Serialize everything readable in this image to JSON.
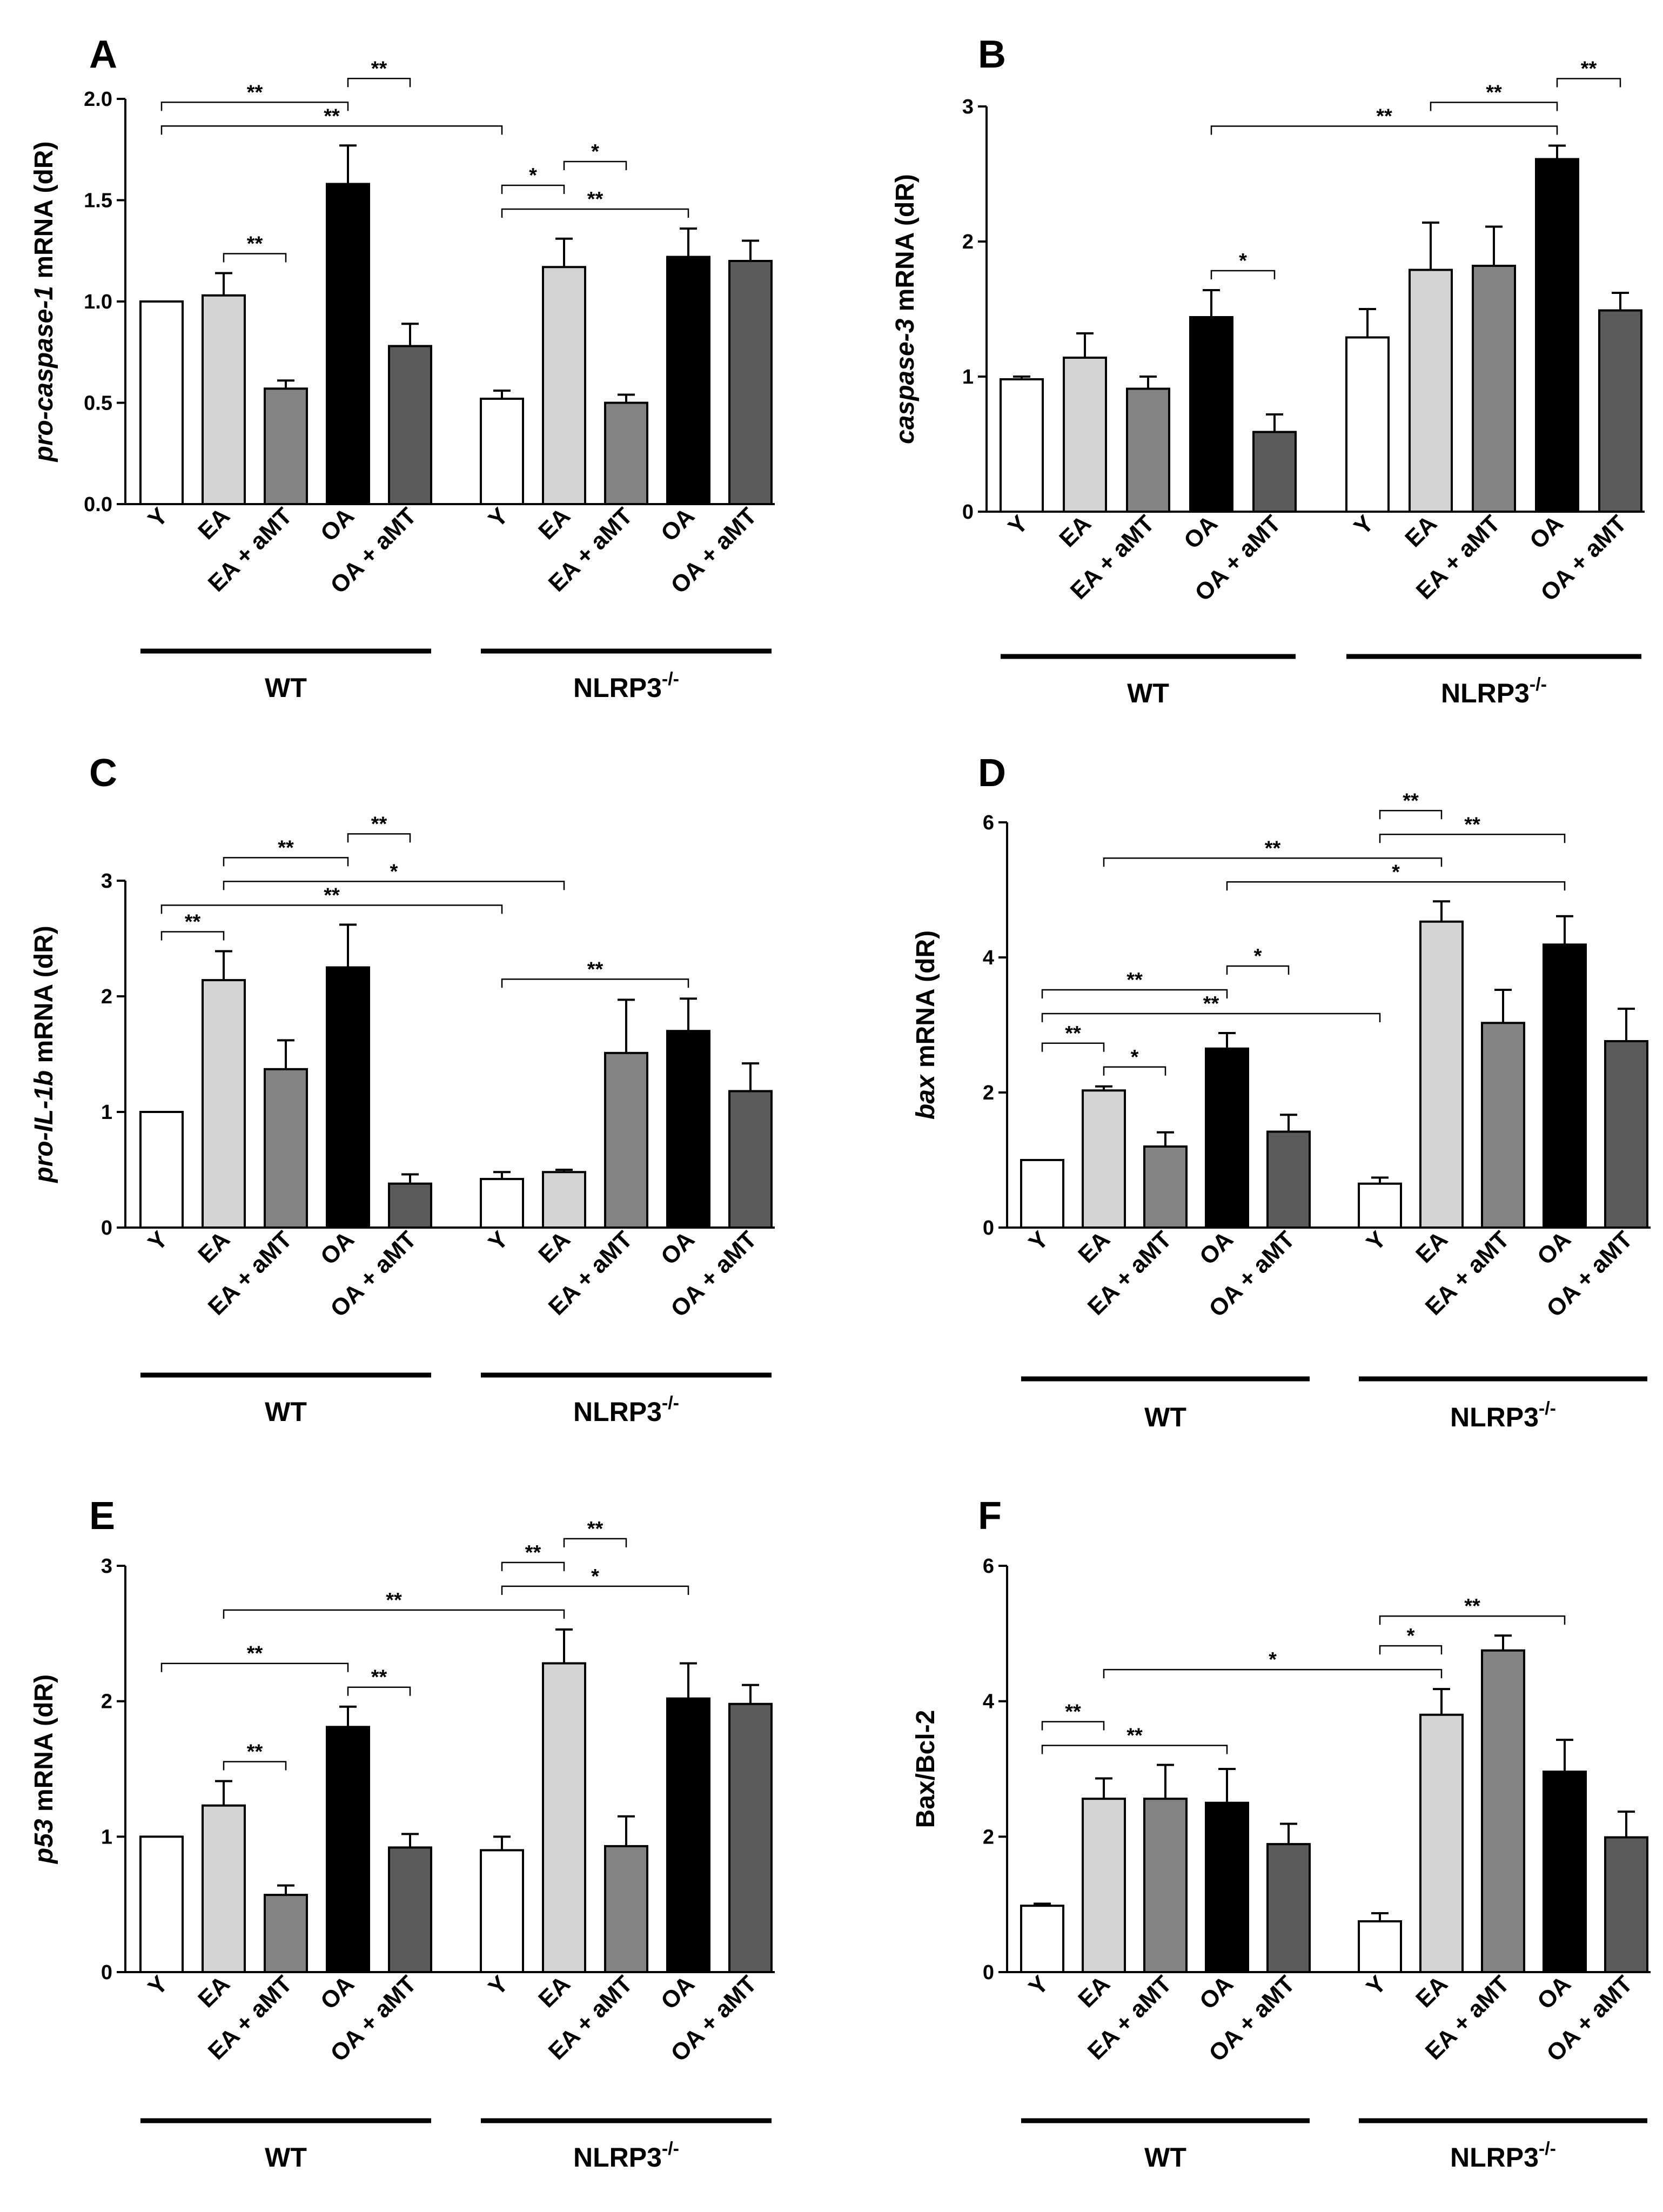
{
  "colors": {
    "Y": "#ffffff",
    "EA": "#d4d4d4",
    "EA + aMT": "#838383",
    "OA": "#000000",
    "OA + aMT": "#5a5a5a"
  },
  "groups": [
    "WT",
    "NLRP3",
    "-/-"
  ],
  "chart_data": [
    {
      "type": "bar",
      "panel": "A",
      "ylabel": {
        "gene": "pro-caspase-1",
        "rest": " mRNA (dR)"
      },
      "ylim": [
        0,
        2.0
      ],
      "yticks": [
        "0.0",
        "0.5",
        "1.0",
        "1.5",
        "2.0"
      ],
      "categories": [
        "Y",
        "EA",
        "EA + aMT",
        "OA",
        "OA + aMT",
        "Y",
        "EA",
        "EA + aMT",
        "OA",
        "OA + aMT"
      ],
      "values": [
        1.0,
        1.03,
        0.57,
        1.58,
        0.78,
        0.52,
        1.17,
        0.5,
        1.22,
        1.2
      ],
      "errors": [
        0,
        0.11,
        0.04,
        0.19,
        0.11,
        0.04,
        0.14,
        0.04,
        0.14,
        0.1
      ],
      "significance": [
        {
          "from": 0,
          "to": 5,
          "label": "**"
        },
        {
          "from": 0,
          "to": 3,
          "label": "**"
        },
        {
          "from": 3,
          "to": 4,
          "label": "**"
        },
        {
          "from": 1,
          "to": 2,
          "label": "**"
        },
        {
          "from": 5,
          "to": 8,
          "label": "**"
        },
        {
          "from": 5,
          "to": 6,
          "label": "*"
        },
        {
          "from": 6,
          "to": 7,
          "label": "*"
        }
      ]
    },
    {
      "type": "bar",
      "panel": "B",
      "ylabel": {
        "gene": "caspase-3",
        "rest": " mRNA (dR)"
      },
      "ylim": [
        0,
        3
      ],
      "yticks": [
        "0",
        "1",
        "2",
        "3"
      ],
      "categories": [
        "Y",
        "EA",
        "EA + aMT",
        "OA",
        "OA + aMT",
        "Y",
        "EA",
        "EA + aMT",
        "OA",
        "OA + aMT"
      ],
      "values": [
        0.98,
        1.14,
        0.91,
        1.44,
        0.59,
        1.29,
        1.79,
        1.82,
        2.61,
        1.49
      ],
      "errors": [
        0.02,
        0.18,
        0.09,
        0.2,
        0.13,
        0.21,
        0.35,
        0.29,
        0.1,
        0.13
      ],
      "significance": [
        {
          "from": 3,
          "to": 8,
          "label": "**"
        },
        {
          "from": 6,
          "to": 8,
          "label": "**"
        },
        {
          "from": 8,
          "to": 9,
          "label": "**"
        },
        {
          "from": 3,
          "to": 4,
          "label": "*"
        }
      ]
    },
    {
      "type": "bar",
      "panel": "C",
      "ylabel": {
        "gene": "pro-IL-1b",
        "rest": "  mRNA (dR)"
      },
      "ylim": [
        0,
        3
      ],
      "yticks": [
        "0",
        "1",
        "2",
        "3"
      ],
      "categories": [
        "Y",
        "EA",
        "EA + aMT",
        "OA",
        "OA + aMT",
        "Y",
        "EA",
        "EA + aMT",
        "OA",
        "OA + aMT"
      ],
      "values": [
        1.0,
        2.14,
        1.37,
        2.25,
        0.38,
        0.42,
        0.48,
        1.51,
        1.7,
        1.18
      ],
      "errors": [
        0,
        0.25,
        0.25,
        0.37,
        0.08,
        0.06,
        0.02,
        0.46,
        0.28,
        0.24
      ],
      "significance": [
        {
          "from": 0,
          "to": 5,
          "label": "**"
        },
        {
          "from": 1,
          "to": 6,
          "label": "*"
        },
        {
          "from": 1,
          "to": 3,
          "label": "**"
        },
        {
          "from": 0,
          "to": 1,
          "label": "**"
        },
        {
          "from": 3,
          "to": 4,
          "label": "**"
        },
        {
          "from": 5,
          "to": 8,
          "label": "**"
        }
      ]
    },
    {
      "type": "bar",
      "panel": "D",
      "ylabel": {
        "gene": "bax",
        "rest": " mRNA (dR)"
      },
      "ylim": [
        0,
        6
      ],
      "yticks": [
        "0",
        "2",
        "4",
        "6"
      ],
      "categories": [
        "Y",
        "EA",
        "EA + aMT",
        "OA",
        "OA + aMT",
        "Y",
        "EA",
        "EA + aMT",
        "OA",
        "OA + aMT"
      ],
      "values": [
        1.0,
        2.03,
        1.2,
        2.65,
        1.42,
        0.65,
        4.53,
        3.03,
        4.19,
        2.76
      ],
      "errors": [
        0,
        0.06,
        0.21,
        0.23,
        0.25,
        0.09,
        0.3,
        0.49,
        0.42,
        0.48
      ],
      "significance": [
        {
          "from": 3,
          "to": 8,
          "label": "*"
        },
        {
          "from": 1,
          "to": 6,
          "label": "**"
        },
        {
          "from": 5,
          "to": 8,
          "label": "**"
        },
        {
          "from": 5,
          "to": 6,
          "label": "**"
        },
        {
          "from": 0,
          "to": 5,
          "label": "**"
        },
        {
          "from": 0,
          "to": 3,
          "label": "**"
        },
        {
          "from": 1,
          "to": 2,
          "label": "*"
        },
        {
          "from": 3,
          "to": 4,
          "label": "*"
        },
        {
          "from": 0,
          "to": 1,
          "label": "**"
        }
      ]
    },
    {
      "type": "bar",
      "panel": "E",
      "ylabel": {
        "gene": "p53",
        "rest": " mRNA (dR)"
      },
      "ylim": [
        0,
        3
      ],
      "yticks": [
        "0",
        "1",
        "2",
        "3"
      ],
      "categories": [
        "Y",
        "EA",
        "EA + aMT",
        "OA",
        "OA + aMT",
        "Y",
        "EA",
        "EA + aMT",
        "OA",
        "OA + aMT"
      ],
      "values": [
        1.0,
        1.23,
        0.57,
        1.81,
        0.92,
        0.9,
        2.28,
        0.93,
        2.02,
        1.98
      ],
      "errors": [
        0,
        0.18,
        0.07,
        0.15,
        0.1,
        0.1,
        0.25,
        0.22,
        0.26,
        0.14
      ],
      "significance": [
        {
          "from": 1,
          "to": 6,
          "label": "**"
        },
        {
          "from": 5,
          "to": 8,
          "label": "*"
        },
        {
          "from": 5,
          "to": 6,
          "label": "**"
        },
        {
          "from": 6,
          "to": 7,
          "label": "**"
        },
        {
          "from": 3,
          "to": 4,
          "label": "**"
        },
        {
          "from": 0,
          "to": 3,
          "label": "**"
        },
        {
          "from": 1,
          "to": 2,
          "label": "**"
        }
      ]
    },
    {
      "type": "bar",
      "panel": "F",
      "ylabel": {
        "gene": "",
        "rest": "Bax/Bcl-2"
      },
      "ylim": [
        0,
        6
      ],
      "yticks": [
        "0",
        "2",
        "4",
        "6"
      ],
      "categories": [
        "Y",
        "EA",
        "EA + aMT",
        "OA",
        "OA + aMT",
        "Y",
        "EA",
        "EA + aMT",
        "OA",
        "OA + aMT"
      ],
      "values": [
        0.98,
        2.56,
        2.56,
        2.5,
        1.89,
        0.75,
        3.8,
        4.75,
        2.96,
        1.99
      ],
      "errors": [
        0.03,
        0.3,
        0.5,
        0.5,
        0.3,
        0.12,
        0.38,
        0.22,
        0.47,
        0.38
      ],
      "significance": [
        {
          "from": 1,
          "to": 6,
          "label": "*"
        },
        {
          "from": 5,
          "to": 8,
          "label": "**"
        },
        {
          "from": 5,
          "to": 6,
          "label": "*"
        },
        {
          "from": 0,
          "to": 3,
          "label": "**"
        },
        {
          "from": 0,
          "to": 1,
          "label": "**"
        }
      ]
    }
  ]
}
